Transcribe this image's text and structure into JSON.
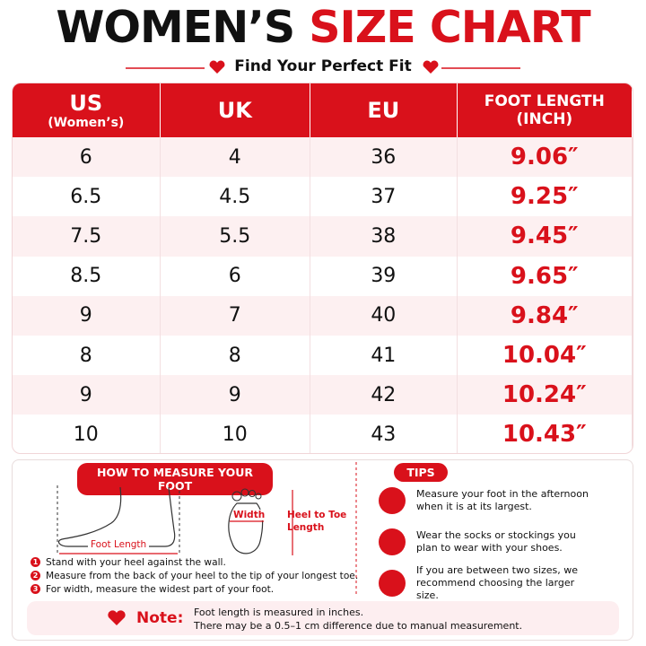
{
  "header": {
    "title_black": "WOMEN’S",
    "title_red": "SIZE CHART",
    "subtitle": "Find Your Perfect Fit"
  },
  "table": {
    "columns": [
      {
        "label": "US",
        "sublabel": "(Women’s)"
      },
      {
        "label": "UK"
      },
      {
        "label": "EU"
      },
      {
        "label": "FOOT LENGTH",
        "sublabel": "(INCH)"
      }
    ],
    "rows": [
      [
        "6",
        "4",
        "36",
        "9.06″"
      ],
      [
        "6.5",
        "4.5",
        "37",
        "9.25″"
      ],
      [
        "7.5",
        "5.5",
        "38",
        "9.45″"
      ],
      [
        "8.5",
        "6",
        "39",
        "9.65″"
      ],
      [
        "9",
        "7",
        "40",
        "9.84″"
      ],
      [
        "8",
        "8",
        "41",
        "10.04″"
      ],
      [
        "9",
        "9",
        "42",
        "10.24″"
      ],
      [
        "10",
        "10",
        "43",
        "10.43″"
      ]
    ]
  },
  "measure": {
    "title": "HOW TO MEASURE YOUR FOOT",
    "foot_length_label": "Foot Length",
    "width_label": "Width",
    "heel_to_toe_label": "Heel to Toe Length",
    "steps": [
      {
        "number": "1",
        "text": "Stand with your heel against the wall."
      },
      {
        "number": "2",
        "text": "Measure from the back of your heel to the tip of your longest toe."
      },
      {
        "number": "3",
        "text": "For width, measure the widest part of your foot."
      }
    ]
  },
  "tips": {
    "title": "TIPS",
    "items": [
      "Measure your foot in the afternoon when it is at its largest.",
      "Wear the socks or stockings you plan to wear with your shoes.",
      "If you are between two sizes, we recommend choosing the larger size."
    ]
  },
  "note": {
    "label": "Note:",
    "lines": [
      "Foot length is measured in inches.",
      "There may be a 0.5–1 cm difference due to manual measurement."
    ]
  }
}
